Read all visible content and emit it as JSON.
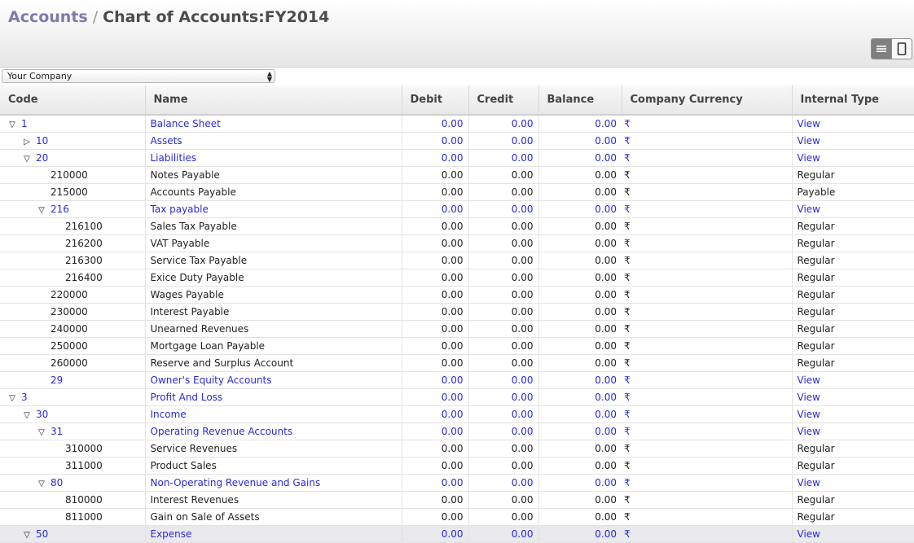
{
  "breadcrumb": {
    "link": "Accounts",
    "separator": "/",
    "current": "Chart of Accounts:FY2014"
  },
  "company_select": {
    "value": "Your Company"
  },
  "columns": [
    "Code",
    "Name",
    "Debit",
    "Credit",
    "Balance",
    "Company Currency",
    "Internal Type"
  ],
  "rows": [
    {
      "code": "1",
      "name": "Balance Sheet",
      "debit": "0.00",
      "credit": "0.00",
      "balance": "0.00",
      "currency": "₹",
      "type": "View",
      "level": 0,
      "toggle": "▽"
    },
    {
      "code": "10",
      "name": "Assets",
      "debit": "0.00",
      "credit": "0.00",
      "balance": "0.00",
      "currency": "₹",
      "type": "View",
      "level": 1,
      "toggle": "▷"
    },
    {
      "code": "20",
      "name": "Liabilities",
      "debit": "0.00",
      "credit": "0.00",
      "balance": "0.00",
      "currency": "₹",
      "type": "View",
      "level": 1,
      "toggle": "▽"
    },
    {
      "code": "210000",
      "name": "Notes Payable",
      "debit": "0.00",
      "credit": "0.00",
      "balance": "0.00",
      "currency": "₹",
      "type": "Regular",
      "level": 2,
      "toggle": ""
    },
    {
      "code": "215000",
      "name": "Accounts Payable",
      "debit": "0.00",
      "credit": "0.00",
      "balance": "0.00",
      "currency": "₹",
      "type": "Payable",
      "level": 2,
      "toggle": ""
    },
    {
      "code": "216",
      "name": "Tax payable",
      "debit": "0.00",
      "credit": "0.00",
      "balance": "0.00",
      "currency": "₹",
      "type": "View",
      "level": 2,
      "toggle": "▽"
    },
    {
      "code": "216100",
      "name": "Sales Tax Payable",
      "debit": "0.00",
      "credit": "0.00",
      "balance": "0.00",
      "currency": "₹",
      "type": "Regular",
      "level": 3,
      "toggle": ""
    },
    {
      "code": "216200",
      "name": "VAT Payable",
      "debit": "0.00",
      "credit": "0.00",
      "balance": "0.00",
      "currency": "₹",
      "type": "Regular",
      "level": 3,
      "toggle": ""
    },
    {
      "code": "216300",
      "name": "Service Tax Payable",
      "debit": "0.00",
      "credit": "0.00",
      "balance": "0.00",
      "currency": "₹",
      "type": "Regular",
      "level": 3,
      "toggle": ""
    },
    {
      "code": "216400",
      "name": "Exice Duty Payable",
      "debit": "0.00",
      "credit": "0.00",
      "balance": "0.00",
      "currency": "₹",
      "type": "Regular",
      "level": 3,
      "toggle": ""
    },
    {
      "code": "220000",
      "name": "Wages Payable",
      "debit": "0.00",
      "credit": "0.00",
      "balance": "0.00",
      "currency": "₹",
      "type": "Regular",
      "level": 2,
      "toggle": ""
    },
    {
      "code": "230000",
      "name": "Interest Payable",
      "debit": "0.00",
      "credit": "0.00",
      "balance": "0.00",
      "currency": "₹",
      "type": "Regular",
      "level": 2,
      "toggle": ""
    },
    {
      "code": "240000",
      "name": "Unearned Revenues",
      "debit": "0.00",
      "credit": "0.00",
      "balance": "0.00",
      "currency": "₹",
      "type": "Regular",
      "level": 2,
      "toggle": ""
    },
    {
      "code": "250000",
      "name": "Mortgage Loan Payable",
      "debit": "0.00",
      "credit": "0.00",
      "balance": "0.00",
      "currency": "₹",
      "type": "Regular",
      "level": 2,
      "toggle": ""
    },
    {
      "code": "260000",
      "name": "Reserve and Surplus Account",
      "debit": "0.00",
      "credit": "0.00",
      "balance": "0.00",
      "currency": "₹",
      "type": "Regular",
      "level": 2,
      "toggle": ""
    },
    {
      "code": "29",
      "name": "Owner's Equity Accounts",
      "debit": "0.00",
      "credit": "0.00",
      "balance": "0.00",
      "currency": "₹",
      "type": "View",
      "level": 2,
      "toggle": ""
    },
    {
      "code": "3",
      "name": "Profit And Loss",
      "debit": "0.00",
      "credit": "0.00",
      "balance": "0.00",
      "currency": "₹",
      "type": "View",
      "level": 0,
      "toggle": "▽"
    },
    {
      "code": "30",
      "name": "Income",
      "debit": "0.00",
      "credit": "0.00",
      "balance": "0.00",
      "currency": "₹",
      "type": "View",
      "level": 1,
      "toggle": "▽"
    },
    {
      "code": "31",
      "name": "Operating Revenue Accounts",
      "debit": "0.00",
      "credit": "0.00",
      "balance": "0.00",
      "currency": "₹",
      "type": "View",
      "level": 2,
      "toggle": "▽"
    },
    {
      "code": "310000",
      "name": "Service Revenues",
      "debit": "0.00",
      "credit": "0.00",
      "balance": "0.00",
      "currency": "₹",
      "type": "Regular",
      "level": 3,
      "toggle": ""
    },
    {
      "code": "311000",
      "name": "Product Sales",
      "debit": "0.00",
      "credit": "0.00",
      "balance": "0.00",
      "currency": "₹",
      "type": "Regular",
      "level": 3,
      "toggle": ""
    },
    {
      "code": "80",
      "name": "Non-Operating Revenue and Gains",
      "debit": "0.00",
      "credit": "0.00",
      "balance": "0.00",
      "currency": "₹",
      "type": "View",
      "level": 2,
      "toggle": "▽"
    },
    {
      "code": "810000",
      "name": "Interest Revenues",
      "debit": "0.00",
      "credit": "0.00",
      "balance": "0.00",
      "currency": "₹",
      "type": "Regular",
      "level": 3,
      "toggle": ""
    },
    {
      "code": "811000",
      "name": "Gain on Sale of Assets",
      "debit": "0.00",
      "credit": "0.00",
      "balance": "0.00",
      "currency": "₹",
      "type": "Regular",
      "level": 3,
      "toggle": ""
    },
    {
      "code": "50",
      "name": "Expense",
      "debit": "0.00",
      "credit": "0.00",
      "balance": "0.00",
      "currency": "₹",
      "type": "View",
      "level": 1,
      "toggle": "▽"
    }
  ],
  "colors": {
    "link": "#2a2ad6",
    "breadcrumb_link": "#7c7bad"
  }
}
